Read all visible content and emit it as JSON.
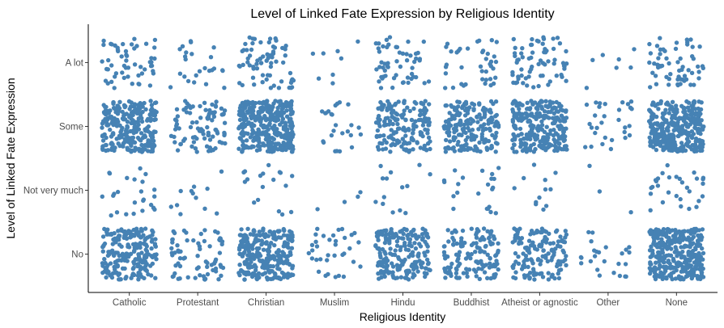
{
  "chart_data": {
    "type": "scatter",
    "title": "Level of Linked Fate Expression by Religious Identity",
    "xlabel": "Religious Identity",
    "ylabel": "Level of Linked Fate Expression",
    "categories": [
      "Catholic",
      "Protestant",
      "Christian",
      "Muslim",
      "Hindu",
      "Buddhist",
      "Atheist or agnostic",
      "Other",
      "None"
    ],
    "levels": [
      "No",
      "Not very much",
      "Some",
      "A lot"
    ],
    "jitter": {
      "x": 0.4,
      "y": 0.4
    },
    "point_color": "#4682B4",
    "grid": false,
    "approx_counts": {
      "Catholic": {
        "A lot": 55,
        "Some": 260,
        "Not very much": 25,
        "No": 220
      },
      "Protestant": {
        "A lot": 25,
        "Some": 90,
        "Not very much": 12,
        "No": 70
      },
      "Christian": {
        "A lot": 70,
        "Some": 330,
        "Not very much": 18,
        "No": 260
      },
      "Muslim": {
        "A lot": 8,
        "Some": 25,
        "Not very much": 4,
        "No": 35
      },
      "Hindu": {
        "A lot": 55,
        "Some": 170,
        "Not very much": 14,
        "No": 200
      },
      "Buddhist": {
        "A lot": 40,
        "Some": 190,
        "Not very much": 22,
        "No": 140
      },
      "Atheist or agnostic": {
        "A lot": 70,
        "Some": 260,
        "Not very much": 12,
        "No": 150
      },
      "Other": {
        "A lot": 7,
        "Some": 30,
        "Not very much": 3,
        "No": 25
      },
      "None": {
        "A lot": 60,
        "Some": 320,
        "Not very much": 30,
        "No": 320
      }
    }
  }
}
